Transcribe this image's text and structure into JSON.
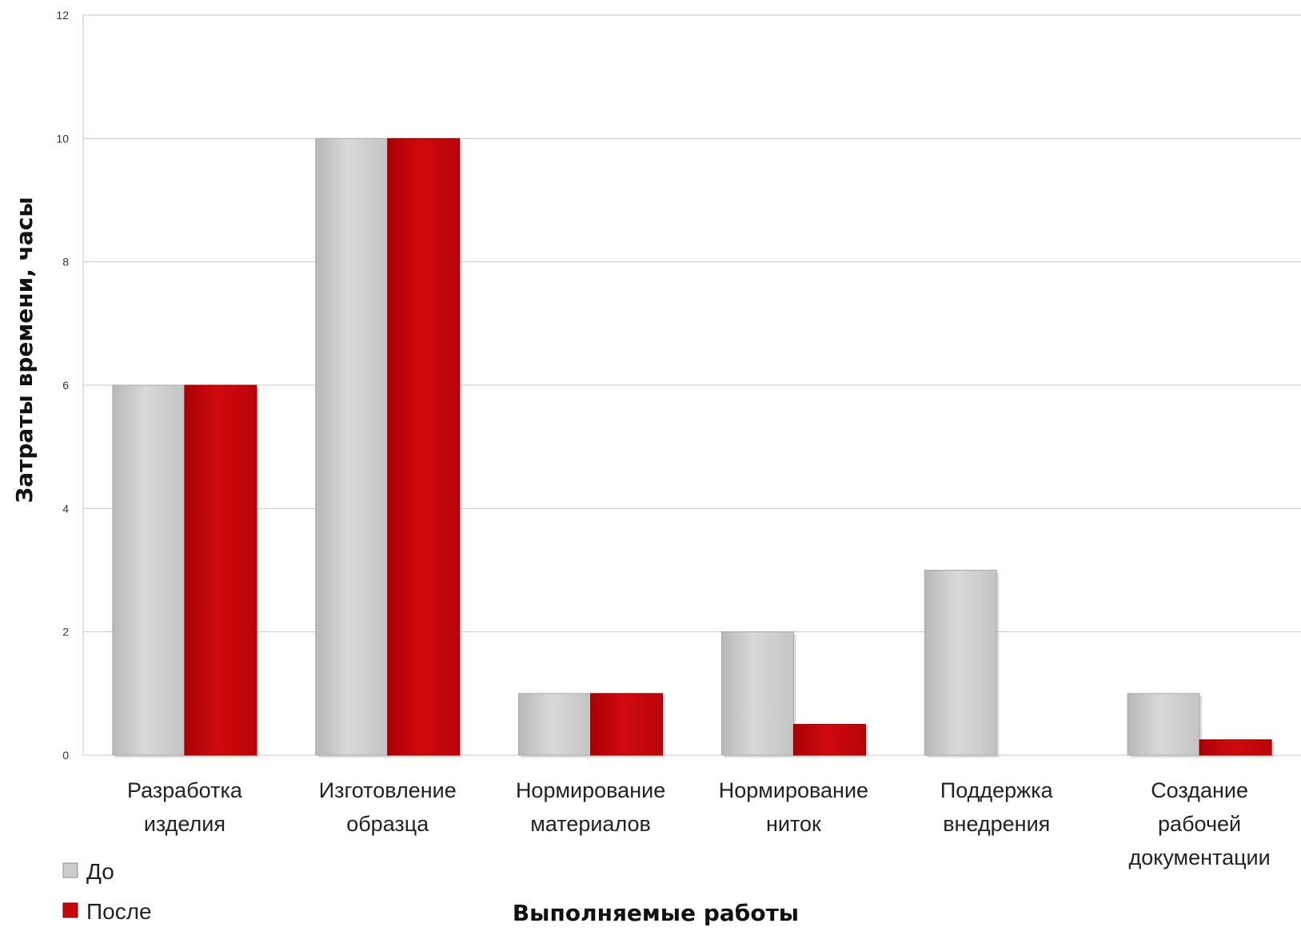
{
  "chart_data": {
    "type": "bar",
    "categories": [
      [
        "Разработка",
        "изделия"
      ],
      [
        "Изготовление",
        "образца"
      ],
      [
        "Нормирование",
        "материалов"
      ],
      [
        "Нормирование",
        "ниток"
      ],
      [
        "Поддержка",
        "внедрения"
      ],
      [
        "Создание",
        "рабочей",
        "документации"
      ]
    ],
    "series": [
      {
        "name": "До",
        "color": "#cccccc",
        "values": [
          6,
          10,
          1,
          2,
          3,
          1
        ]
      },
      {
        "name": "После",
        "color": "#c8070b",
        "values": [
          6,
          10,
          1,
          0.5,
          0,
          0.25
        ]
      }
    ],
    "xlabel": "Выполняемые работы",
    "ylabel": "Затраты времени, часы",
    "ylim": [
      0,
      12
    ],
    "yticks": [
      "0",
      "2",
      "4",
      "6",
      "8",
      "10",
      "12"
    ],
    "grid": true,
    "legend_position": "bottom-left"
  }
}
